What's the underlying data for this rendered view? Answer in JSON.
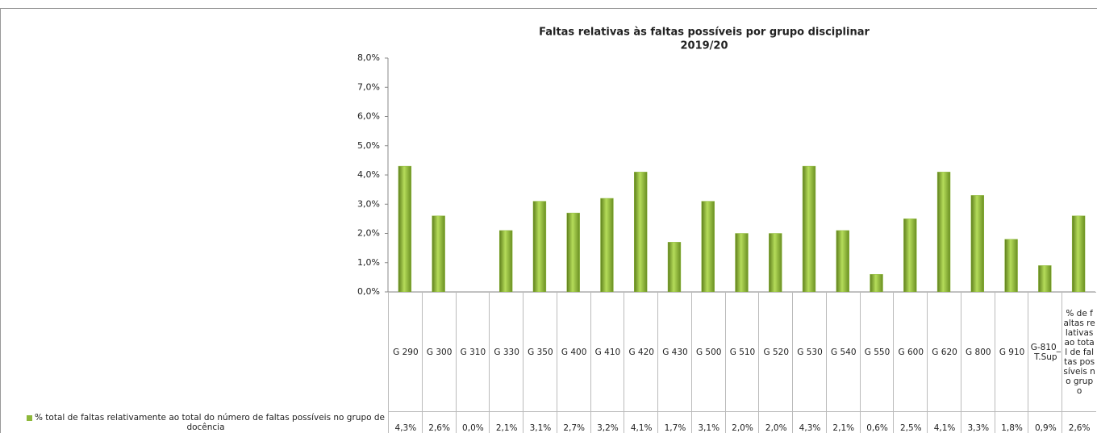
{
  "chart_data": {
    "type": "bar",
    "title": "Faltas relativas às faltas possíveis por grupo disciplinar",
    "subtitle": "2019/20",
    "categories": [
      "G 290",
      "G 300",
      "G 310",
      "G 330",
      "G 350",
      "G 400",
      "G 410",
      "G 420",
      "G 430",
      "G 500",
      "G 510",
      "G 520",
      "G 530",
      "G 540",
      "G 550",
      "G 600",
      "G 620",
      "G 800",
      "G 910",
      "G-810_T.Sup",
      "% de faltas relativas ao total de faltas possíveis no grupo"
    ],
    "series": [
      {
        "name": "% total de faltas relativamente ao total do número de faltas possíveis no grupo de docência",
        "color": "#8db83a",
        "values": [
          4.3,
          2.6,
          0.0,
          2.1,
          3.1,
          2.7,
          3.2,
          4.1,
          1.7,
          3.1,
          2.0,
          2.0,
          4.3,
          2.1,
          0.6,
          2.5,
          4.1,
          3.3,
          1.8,
          0.9,
          2.6
        ],
        "value_labels": [
          "4,3%",
          "2,6%",
          "0,0%",
          "2,1%",
          "3,1%",
          "2,7%",
          "3,2%",
          "4,1%",
          "1,7%",
          "3,1%",
          "2,0%",
          "2,0%",
          "4,3%",
          "2,1%",
          "0,6%",
          "2,5%",
          "4,1%",
          "3,3%",
          "1,8%",
          "0,9%",
          "2,6%"
        ]
      }
    ],
    "ylim": [
      0,
      8
    ],
    "yticks": [
      {
        "value": 0,
        "label": "0,0%"
      },
      {
        "value": 1,
        "label": "1,0%"
      },
      {
        "value": 2,
        "label": "2,0%"
      },
      {
        "value": 3,
        "label": "3,0%"
      },
      {
        "value": 4,
        "label": "4,0%"
      },
      {
        "value": 5,
        "label": "5,0%"
      },
      {
        "value": 6,
        "label": "6,0%"
      },
      {
        "value": 7,
        "label": "7,0%"
      },
      {
        "value": 8,
        "label": "8,0%"
      }
    ],
    "grid": false
  }
}
